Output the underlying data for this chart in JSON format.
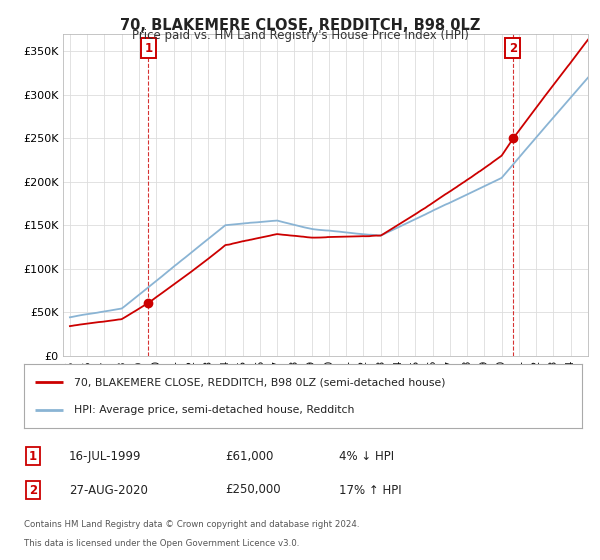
{
  "title": "70, BLAKEMERE CLOSE, REDDITCH, B98 0LZ",
  "subtitle": "Price paid vs. HM Land Registry's House Price Index (HPI)",
  "ylabel_ticks": [
    "£0",
    "£50K",
    "£100K",
    "£150K",
    "£200K",
    "£250K",
    "£300K",
    "£350K"
  ],
  "ytick_values": [
    0,
    50000,
    100000,
    150000,
    200000,
    250000,
    300000,
    350000
  ],
  "ylim": [
    0,
    370000
  ],
  "sale1_price": 61000,
  "sale1_year": 1999.542,
  "sale2_price": 250000,
  "sale2_year": 2020.646,
  "property_line_color": "#cc0000",
  "hpi_line_color": "#8ab4d4",
  "legend1": "70, BLAKEMERE CLOSE, REDDITCH, B98 0LZ (semi-detached house)",
  "legend2": "HPI: Average price, semi-detached house, Redditch",
  "footer1": "Contains HM Land Registry data © Crown copyright and database right 2024.",
  "footer2": "This data is licensed under the Open Government Licence v3.0.",
  "annotation_box_color": "#cc0000",
  "bg_color": "#ffffff",
  "grid_color": "#dddddd",
  "xstart_year": 1995,
  "xend_year": 2024,
  "xlim_left": 1994.6,
  "xlim_right": 2025.0,
  "row1": [
    "1",
    "16-JUL-1999",
    "£61,000",
    "4% ↓ HPI"
  ],
  "row2": [
    "2",
    "27-AUG-2020",
    "£250,000",
    "17% ↑ HPI"
  ]
}
